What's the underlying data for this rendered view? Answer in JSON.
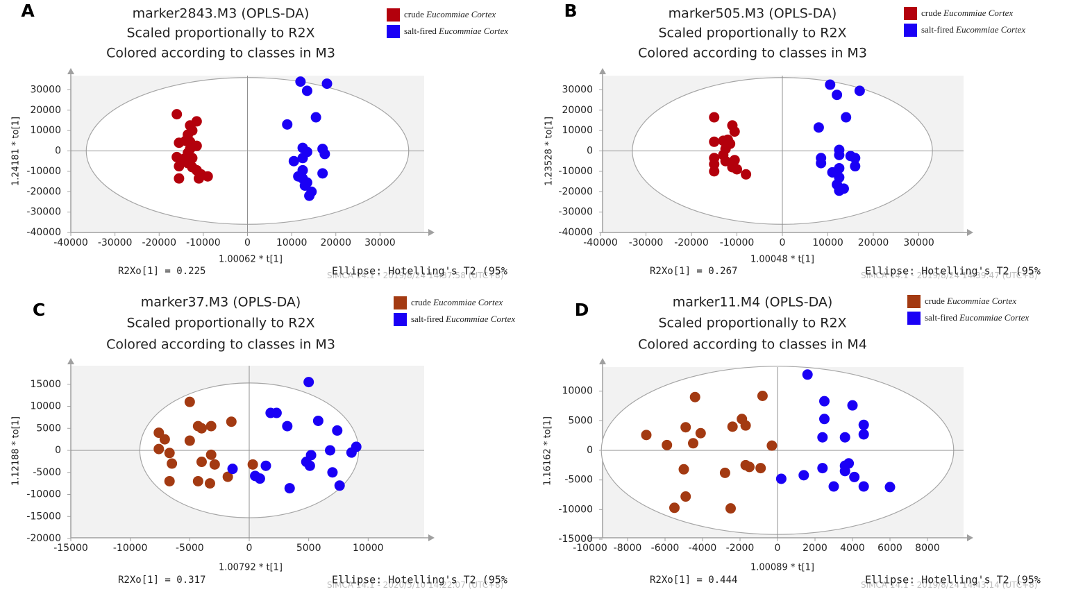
{
  "colors": {
    "crude_marker": "#b3000c",
    "crude_brown": "#a33a12",
    "salt_fired": "#1a00f5",
    "plot_bg": "#f2f2f2",
    "ellipse": "#a6a6a6",
    "footer": "#bfbfbf"
  },
  "chart_data": [
    {
      "panel_label": "A",
      "type": "scatter",
      "title": "marker2843.M3 (OPLS-DA)",
      "subtitle1": "Scaled proportionally to R2X",
      "subtitle2": "Colored according to classes in M3",
      "xlabel": "1.00062 * t[1]",
      "ylabel": "1.24181 * to[1]",
      "xlim": [
        -40000,
        40000
      ],
      "ylim": [
        -40000,
        40000
      ],
      "xticks": [
        -40000,
        -30000,
        -20000,
        -10000,
        0,
        10000,
        20000,
        30000
      ],
      "yticks": [
        -40000,
        -30000,
        -20000,
        -10000,
        0,
        10000,
        20000,
        30000
      ],
      "xtick_labels": [
        "-40000",
        "-30000",
        "-20000",
        "-10000",
        "0",
        "10000",
        "20000",
        "30000"
      ],
      "ytick_labels": [
        "-40000",
        "-30000",
        "-20000",
        "-10000",
        "0",
        "10000",
        "20000",
        "30000"
      ],
      "ellipse_rx": 36500,
      "ellipse_ry": 36000,
      "r2xo_text": "R2Xo[1] = 0.225",
      "ellipse_text": "Ellipse: Hotelling's T2 (95%",
      "footer_text": "SIMCA 14.1 - 2019/8/24 14:37:58 (UTC+8)",
      "legend": [
        {
          "prefix": "crude ",
          "italic": "Eucommiae Cortex"
        },
        {
          "prefix": "salt-fired ",
          "italic": "Eucommiae Cortex"
        }
      ],
      "series": [
        {
          "name": "crude Eucommiae Cortex",
          "color": "#b3000c",
          "points": [
            [
              -16000,
              18000
            ],
            [
              -11500,
              14500
            ],
            [
              -13000,
              12500
            ],
            [
              -12500,
              10000
            ],
            [
              -13500,
              8000
            ],
            [
              -15500,
              4000
            ],
            [
              -14000,
              5000
            ],
            [
              -13000,
              4500
            ],
            [
              -11500,
              2500
            ],
            [
              -13000,
              1000
            ],
            [
              -13500,
              -1000
            ],
            [
              -14500,
              -4000
            ],
            [
              -16000,
              -3000
            ],
            [
              -15500,
              -7500
            ],
            [
              -13500,
              -6000
            ],
            [
              -12500,
              -8000
            ],
            [
              -11500,
              -9500
            ],
            [
              -10500,
              -11500
            ],
            [
              -9000,
              -12500
            ],
            [
              -11000,
              -13500
            ],
            [
              -15500,
              -13500
            ],
            [
              -12500,
              -3500
            ]
          ]
        },
        {
          "name": "salt-fired Eucommiae Cortex",
          "color": "#1a00f5",
          "points": [
            [
              12000,
              34000
            ],
            [
              18000,
              33000
            ],
            [
              13500,
              29500
            ],
            [
              9000,
              13000
            ],
            [
              15500,
              16500
            ],
            [
              12500,
              1500
            ],
            [
              13500,
              -500
            ],
            [
              17000,
              1000
            ],
            [
              17500,
              -1500
            ],
            [
              10500,
              -5000
            ],
            [
              12500,
              -3500
            ],
            [
              12500,
              -9500
            ],
            [
              11500,
              -12500
            ],
            [
              17000,
              -11000
            ],
            [
              12500,
              -13500
            ],
            [
              13000,
              -17000
            ],
            [
              14500,
              -20000
            ],
            [
              14000,
              -22000
            ],
            [
              13500,
              -15500
            ]
          ]
        }
      ]
    },
    {
      "panel_label": "B",
      "type": "scatter",
      "title": "marker505.M3 (OPLS-DA)",
      "subtitle1": "Scaled proportionally to R2X",
      "subtitle2": "Colored according to classes in M3",
      "xlabel": "1.00048 * t[1]",
      "ylabel": "1.23528 * to[1]",
      "xlim": [
        -40000,
        40000
      ],
      "ylim": [
        -40000,
        40000
      ],
      "xticks": [
        -40000,
        -30000,
        -20000,
        -10000,
        0,
        10000,
        20000,
        30000
      ],
      "yticks": [
        -40000,
        -30000,
        -20000,
        -10000,
        0,
        10000,
        20000,
        30000
      ],
      "xtick_labels": [
        "-40000",
        "-30000",
        "-20000",
        "-10000",
        "0",
        "10000",
        "20000",
        "30000"
      ],
      "ytick_labels": [
        "-40000",
        "-30000",
        "-20000",
        "-10000",
        "0",
        "10000",
        "20000",
        "30000"
      ],
      "ellipse_rx": 33000,
      "ellipse_ry": 36000,
      "r2xo_text": "R2Xo[1] = 0.267",
      "ellipse_text": "Ellipse: Hotelling's T2 (95%",
      "footer_text": "SIMCA 14.1 - 2019/8/24 14:39:47 (UTC+8)",
      "legend": [
        {
          "prefix": "crude ",
          "italic": "Eucommiae Cortex"
        },
        {
          "prefix": "salt-fired ",
          "italic": "Eucommiae Cortex"
        }
      ],
      "series": [
        {
          "name": "crude Eucommiae Cortex",
          "color": "#b3000c",
          "points": [
            [
              -15000,
              16500
            ],
            [
              -11000,
              12500
            ],
            [
              -10500,
              9500
            ],
            [
              -13000,
              5000
            ],
            [
              -12000,
              5500
            ],
            [
              -15000,
              4500
            ],
            [
              -11500,
              3500
            ],
            [
              -12500,
              1000
            ],
            [
              -15000,
              -3500
            ],
            [
              -13000,
              -2000
            ],
            [
              -12500,
              -5000
            ],
            [
              -15000,
              -6500
            ],
            [
              -11000,
              -8000
            ],
            [
              -10000,
              -9000
            ],
            [
              -8000,
              -11500
            ],
            [
              -15000,
              -10000
            ],
            [
              -10500,
              -4500
            ]
          ]
        },
        {
          "name": "salt-fired Eucommiae Cortex",
          "color": "#1a00f5",
          "points": [
            [
              10500,
              32500
            ],
            [
              12000,
              27500
            ],
            [
              17000,
              29500
            ],
            [
              8000,
              11500
            ],
            [
              14000,
              16500
            ],
            [
              12500,
              500
            ],
            [
              12500,
              -2000
            ],
            [
              15000,
              -2500
            ],
            [
              16000,
              -3500
            ],
            [
              16000,
              -7500
            ],
            [
              8500,
              -3500
            ],
            [
              8500,
              -6000
            ],
            [
              11000,
              -10500
            ],
            [
              12500,
              -8500
            ],
            [
              12500,
              -13000
            ],
            [
              13500,
              -18500
            ],
            [
              12500,
              -19500
            ],
            [
              12000,
              -16500
            ]
          ]
        }
      ]
    },
    {
      "panel_label": "C",
      "type": "scatter",
      "title": "marker37.M3 (OPLS-DA)",
      "subtitle1": "Scaled proportionally to R2X",
      "subtitle2": "Colored according to classes in M3",
      "xlabel": "1.00792 * t[1]",
      "ylabel": "1.12188 * to[1]",
      "xlim": [
        -15000,
        15000
      ],
      "ylim": [
        -20000,
        20000
      ],
      "xticks": [
        -15000,
        -10000,
        -5000,
        0,
        5000,
        10000
      ],
      "yticks": [
        -20000,
        -15000,
        -10000,
        -5000,
        0,
        5000,
        10000,
        15000
      ],
      "xtick_labels": [
        "-15000",
        "-10000",
        "-5000",
        "0",
        "5000",
        "10000"
      ],
      "ytick_labels": [
        "-20000",
        "-15000",
        "-10000",
        "-5000",
        "0",
        "5000",
        "10000",
        "15000"
      ],
      "ellipse_rx": 9200,
      "ellipse_ry": 15300,
      "r2xo_text": "R2Xo[1] = 0.317",
      "ellipse_text": "Ellipse: Hotelling's T2 (95%",
      "footer_text": "SIMCA 14.1 - 2020/5/10 14:22:07 (UTC+8)",
      "legend": [
        {
          "prefix": "crude ",
          "italic": "Eucommiae Cortex"
        },
        {
          "prefix": "salt-fired ",
          "italic": "Eucommiae Cortex"
        }
      ],
      "series": [
        {
          "name": "crude Eucommiae Cortex",
          "color": "#a33a12",
          "points": [
            [
              -5000,
              11000
            ],
            [
              -1500,
              6500
            ],
            [
              -4300,
              5500
            ],
            [
              -4000,
              5000
            ],
            [
              -3200,
              5500
            ],
            [
              -7600,
              4000
            ],
            [
              -7100,
              2500
            ],
            [
              -5000,
              2200
            ],
            [
              -7600,
              300
            ],
            [
              -6700,
              -600
            ],
            [
              -3200,
              -1000
            ],
            [
              -6500,
              -3000
            ],
            [
              -4000,
              -2600
            ],
            [
              -2900,
              -3200
            ],
            [
              300,
              -3200
            ],
            [
              -6700,
              -7000
            ],
            [
              -4300,
              -7000
            ],
            [
              -3300,
              -7500
            ],
            [
              -1800,
              -6000
            ]
          ]
        },
        {
          "name": "salt-fired Eucommiae Cortex",
          "color": "#1a00f5",
          "points": [
            [
              5000,
              15500
            ],
            [
              1800,
              8500
            ],
            [
              2300,
              8500
            ],
            [
              3200,
              5500
            ],
            [
              5800,
              6700
            ],
            [
              7400,
              4500
            ],
            [
              9000,
              800
            ],
            [
              8600,
              -500
            ],
            [
              6800,
              0
            ],
            [
              5200,
              -1100
            ],
            [
              4800,
              -2600
            ],
            [
              5100,
              -3500
            ],
            [
              -1400,
              -4200
            ],
            [
              1400,
              -3500
            ],
            [
              500,
              -5800
            ],
            [
              900,
              -6400
            ],
            [
              7000,
              -5000
            ],
            [
              7600,
              -8000
            ],
            [
              3400,
              -8600
            ]
          ]
        }
      ]
    },
    {
      "panel_label": "D",
      "type": "scatter",
      "title": "marker11.M4 (OPLS-DA)",
      "subtitle1": "Scaled proportionally to R2X",
      "subtitle2": "Colored according to classes in M4",
      "xlabel": "1.00089 * t[1]",
      "ylabel": "1.16162 * to[1]",
      "xlim": [
        -10000,
        10000
      ],
      "ylim": [
        -15000,
        15000
      ],
      "xticks": [
        -10000,
        -8000,
        -6000,
        -4000,
        -2000,
        0,
        2000,
        4000,
        6000,
        8000
      ],
      "yticks": [
        -15000,
        -10000,
        -5000,
        0,
        5000,
        10000
      ],
      "xtick_labels": [
        "-10000",
        "-8000",
        "-6000",
        "-4000",
        "-2000",
        "0",
        "2000",
        "4000",
        "6000",
        "8000"
      ],
      "ytick_labels": [
        "-15000",
        "-10000",
        "-5000",
        "0",
        "5000",
        "10000"
      ],
      "ellipse_rx": 9400,
      "ellipse_ry": 14200,
      "r2xo_text": "R2Xo[1] = 0.444",
      "ellipse_text": "Ellipse: Hotelling's T2 (95%",
      "footer_text": "SIMCA 14.1 - 2019/8/24 14:43:14 (UTC+8)",
      "legend": [
        {
          "prefix": "crude ",
          "italic": "Eucommiae Cortex"
        },
        {
          "prefix": "salt-fired ",
          "italic": "Eucommiae Cortex"
        }
      ],
      "series": [
        {
          "name": "crude Eucommiae Cortex",
          "color": "#a33a12",
          "points": [
            [
              -4400,
              9000
            ],
            [
              -800,
              9200
            ],
            [
              -1900,
              5300
            ],
            [
              -1700,
              4200
            ],
            [
              -2400,
              4000
            ],
            [
              -4900,
              3900
            ],
            [
              -4100,
              2900
            ],
            [
              -7000,
              2600
            ],
            [
              -4500,
              1200
            ],
            [
              -5900,
              900
            ],
            [
              -300,
              800
            ],
            [
              -1700,
              -2500
            ],
            [
              -1500,
              -2800
            ],
            [
              -900,
              -3000
            ],
            [
              -5000,
              -3200
            ],
            [
              -2800,
              -3800
            ],
            [
              -4900,
              -7800
            ],
            [
              -5500,
              -9700
            ],
            [
              -2500,
              -9800
            ]
          ]
        },
        {
          "name": "salt-fired Eucommiae Cortex",
          "color": "#1a00f5",
          "points": [
            [
              1600,
              12800
            ],
            [
              2500,
              8300
            ],
            [
              4000,
              7600
            ],
            [
              2500,
              5300
            ],
            [
              4600,
              4300
            ],
            [
              2400,
              2200
            ],
            [
              3600,
              2200
            ],
            [
              4600,
              2700
            ],
            [
              3800,
              -2200
            ],
            [
              3600,
              -2600
            ],
            [
              2400,
              -3000
            ],
            [
              3600,
              -3500
            ],
            [
              4100,
              -4500
            ],
            [
              1400,
              -4200
            ],
            [
              200,
              -4800
            ],
            [
              3000,
              -6100
            ],
            [
              4600,
              -6100
            ],
            [
              6000,
              -6200
            ]
          ]
        }
      ]
    }
  ]
}
